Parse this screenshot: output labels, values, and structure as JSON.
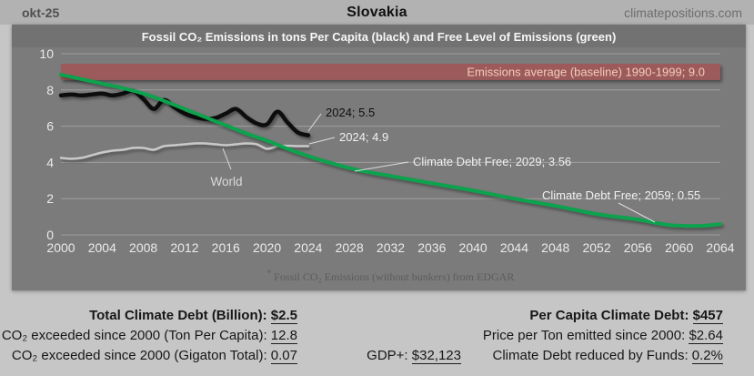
{
  "header": {
    "date": "okt-25",
    "title": "Slovakia",
    "site": "climatepositions.com"
  },
  "chart": {
    "title": "Fossil CO₂ Emissions in tons Per Capita (black) and Free Level of Emissions (green)",
    "footnote_star": "*",
    "footnote": "Fossil CO₂ Emissions (without bunkers) from EDGAR"
  },
  "chart_data": {
    "type": "line",
    "title": "Fossil CO₂ Emissions in tons Per Capita (black) and Free Level of Emissions (green)",
    "ylim": [
      0,
      10
    ],
    "y_ticks": [
      0,
      2,
      4,
      6,
      8,
      10
    ],
    "x_ticks": [
      2000,
      2004,
      2008,
      2012,
      2016,
      2020,
      2024,
      2028,
      2032,
      2036,
      2040,
      2044,
      2048,
      2052,
      2056,
      2060,
      2064
    ],
    "grid": true,
    "baseline": {
      "label": "Emissions average (baseline) 1990-1999; 9.0",
      "value": 9.0,
      "band_range": [
        8.55,
        9.45
      ],
      "band_color": "#9d5a5a",
      "text_color": "#f2cdbb"
    },
    "series": [
      {
        "key": "world",
        "name": "World",
        "color": "#c9c9c9",
        "x": [
          2000,
          2001,
          2002,
          2003,
          2004,
          2005,
          2006,
          2007,
          2008,
          2009,
          2010,
          2011,
          2012,
          2013,
          2014,
          2015,
          2016,
          2017,
          2018,
          2019,
          2020,
          2021,
          2022,
          2023,
          2024
        ],
        "values": [
          4.25,
          4.2,
          4.25,
          4.4,
          4.55,
          4.65,
          4.7,
          4.8,
          4.8,
          4.7,
          4.9,
          4.95,
          5.0,
          5.05,
          5.05,
          5.0,
          4.95,
          5.0,
          5.05,
          5.0,
          4.75,
          4.9,
          4.92,
          4.9,
          4.9
        ]
      },
      {
        "key": "black",
        "name": "Slovakia Fossil CO₂ Emissions in tons Per Capita",
        "color": "#0c0c0c",
        "x": [
          2000,
          2001,
          2002,
          2003,
          2004,
          2005,
          2006,
          2007,
          2008,
          2009,
          2010,
          2011,
          2012,
          2013,
          2014,
          2015,
          2016,
          2017,
          2018,
          2019,
          2020,
          2021,
          2022,
          2023,
          2024
        ],
        "values": [
          7.7,
          7.75,
          7.7,
          7.75,
          7.8,
          7.7,
          7.8,
          7.95,
          7.5,
          6.95,
          7.45,
          7.05,
          6.7,
          6.5,
          6.4,
          6.45,
          6.7,
          6.95,
          6.5,
          6.15,
          6.1,
          6.8,
          6.2,
          5.65,
          5.5
        ]
      },
      {
        "key": "green",
        "name": "Free Level of Emissions",
        "color": "#0ba24d",
        "x": [
          2000,
          2002,
          2004,
          2006,
          2008,
          2010,
          2012,
          2014,
          2016,
          2018,
          2020,
          2022,
          2024,
          2026,
          2029,
          2032,
          2036,
          2040,
          2044,
          2048,
          2052,
          2056,
          2059,
          2062,
          2064
        ],
        "values": [
          8.85,
          8.6,
          8.35,
          8.1,
          7.8,
          7.4,
          6.95,
          6.5,
          6.05,
          5.6,
          5.2,
          4.75,
          4.35,
          4.0,
          3.56,
          3.25,
          2.85,
          2.45,
          2.0,
          1.6,
          1.15,
          0.85,
          0.55,
          0.5,
          0.6
        ]
      }
    ],
    "annotations": {
      "black_2024": "2024; 5.5",
      "world_2024": "2024; 4.9",
      "debt_free_2029": "Climate Debt Free; 2029; 3.56",
      "debt_free_2059": "Climate Debt Free; 2059; 0.55",
      "world_label": "World"
    }
  },
  "stats": {
    "left": [
      {
        "label": "Total Climate Debt (Billion): ",
        "value": "$2.5"
      },
      {
        "label": "CO₂ exceeded since 2000 (Ton Per Capita): ",
        "value": "12.8"
      },
      {
        "label": "CO₂ exceeded since 2000 (Gigaton Total): ",
        "value": "0.07"
      }
    ],
    "middle": {
      "label": "GDP+: ",
      "value": "$32,123"
    },
    "right": [
      {
        "label": "Per Capita Climate Debt: ",
        "value": "$457"
      },
      {
        "label": "Price per Ton emitted since 2000: ",
        "value": "$2.64"
      },
      {
        "label": "Climate Debt reduced by Funds: ",
        "value": "0.2%"
      }
    ]
  }
}
